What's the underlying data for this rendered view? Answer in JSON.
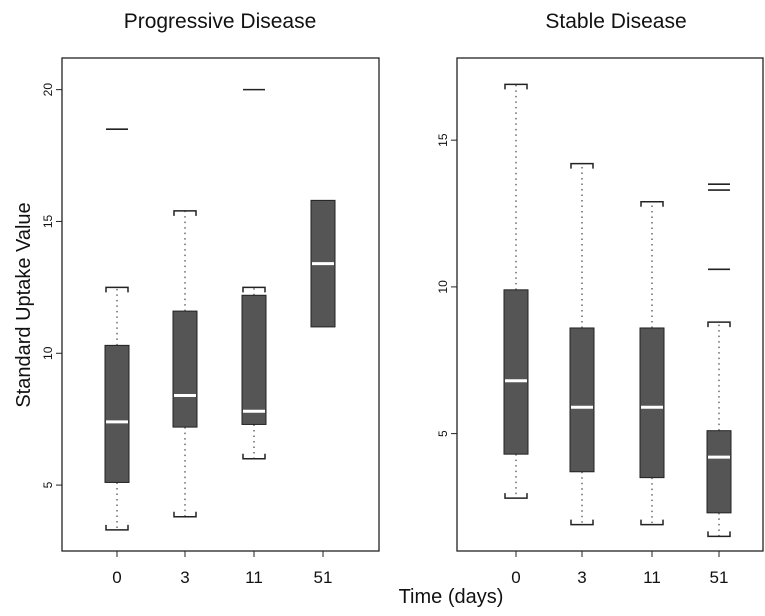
{
  "chart_data": [
    {
      "type": "boxplot",
      "title": "Progressive Disease",
      "ylabel": "Standard Uptake Value",
      "xlabel": "Time (days)",
      "categories": [
        "0",
        "3",
        "11",
        "51"
      ],
      "yticks": [
        "5",
        "10",
        "15",
        "20"
      ],
      "ylim": [
        2.5,
        21.2
      ],
      "boxes": [
        {
          "label": "0",
          "whisker_low": 3.3,
          "q1": 5.1,
          "median": 7.4,
          "q3": 10.3,
          "whisker_high": 12.5,
          "outliers": [
            18.5
          ]
        },
        {
          "label": "3",
          "whisker_low": 3.8,
          "q1": 7.2,
          "median": 8.4,
          "q3": 11.6,
          "whisker_high": 15.4,
          "outliers": []
        },
        {
          "label": "11",
          "whisker_low": 6.0,
          "q1": 7.3,
          "median": 7.8,
          "q3": 12.2,
          "whisker_high": 12.5,
          "outliers": [
            20.0
          ]
        },
        {
          "label": "51",
          "whisker_low": null,
          "q1": 11.0,
          "median": 13.4,
          "q3": 15.8,
          "whisker_high": null,
          "outliers": []
        }
      ]
    },
    {
      "type": "boxplot",
      "title": "Stable Disease",
      "xlabel": "Time (days)",
      "categories": [
        "0",
        "3",
        "11",
        "51"
      ],
      "yticks": [
        "5",
        "10",
        "15"
      ],
      "ylim": [
        1.0,
        17.8
      ],
      "boxes": [
        {
          "label": "0",
          "whisker_low": 2.8,
          "q1": 4.3,
          "median": 6.8,
          "q3": 9.9,
          "whisker_high": 16.9,
          "outliers": []
        },
        {
          "label": "3",
          "whisker_low": 1.9,
          "q1": 3.7,
          "median": 5.9,
          "q3": 8.6,
          "whisker_high": 14.2,
          "outliers": []
        },
        {
          "label": "11",
          "whisker_low": 1.9,
          "q1": 3.5,
          "median": 5.9,
          "q3": 8.6,
          "whisker_high": 12.9,
          "outliers": []
        },
        {
          "label": "51",
          "whisker_low": 1.5,
          "q1": 2.3,
          "median": 4.2,
          "q3": 5.1,
          "whisker_high": 8.8,
          "outliers": [
            10.6,
            13.3,
            13.5
          ]
        }
      ]
    }
  ],
  "shared": {
    "ylabel": "Standard Uptake Value",
    "xlabel": "Time (days)"
  },
  "colors": {
    "box_fill": "#555555",
    "median": "#ffffff",
    "frame": "#222222",
    "whisker": "#444444"
  }
}
